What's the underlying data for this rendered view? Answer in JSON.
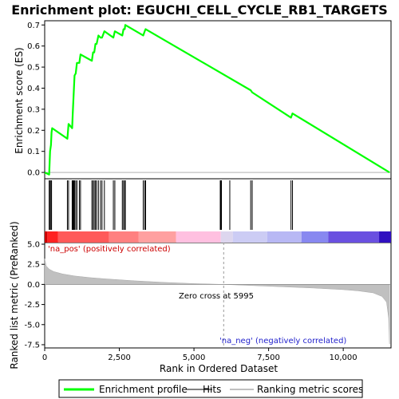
{
  "chart_data": {
    "type": "line",
    "title": "Enrichment plot: EGUCHI_CELL_CYCLE_RB1_TARGETS",
    "xlabel": "Rank in Ordered Dataset",
    "ylabel_top": "Enrichment score (ES)",
    "ylabel_bottom": "Ranked list metric (PreRanked)",
    "xlim": [
      0,
      11600
    ],
    "x_ticks": [
      0,
      2500,
      5000,
      7500,
      10000
    ],
    "x_tick_labels": [
      "0",
      "2,500",
      "5,000",
      "7,500",
      "10,000"
    ],
    "es_ylim": [
      -0.03,
      0.72
    ],
    "es_ticks": [
      0.0,
      0.1,
      0.2,
      0.3,
      0.4,
      0.5,
      0.6,
      0.7
    ],
    "es_tick_labels": [
      "0.0",
      "0.1",
      "0.2",
      "0.3",
      "0.4",
      "0.5",
      "0.6",
      "0.7"
    ],
    "metric_ylim": [
      -7.9,
      5.2
    ],
    "metric_ticks": [
      5.0,
      2.5,
      0.0,
      -2.5,
      -5.0,
      -7.5
    ],
    "metric_tick_labels": [
      "5.0",
      "2.5",
      "0.0",
      "-2.5",
      "-5.0",
      "-7.5"
    ],
    "enrichment_profile": {
      "color": "#00ff00",
      "x": [
        0,
        150,
        180,
        210,
        230,
        250,
        760,
        800,
        920,
        940,
        960,
        980,
        1000,
        1040,
        1080,
        1160,
        1200,
        1580,
        1620,
        1660,
        1700,
        1740,
        1800,
        1870,
        1920,
        2000,
        2300,
        2350,
        2600,
        2640,
        2680,
        2700,
        3300,
        3350,
        3380,
        6900,
        6950,
        8250,
        8300,
        11550
      ],
      "y": [
        0.0,
        -0.01,
        0.1,
        0.13,
        0.19,
        0.21,
        0.16,
        0.23,
        0.21,
        0.28,
        0.34,
        0.4,
        0.46,
        0.47,
        0.52,
        0.52,
        0.56,
        0.53,
        0.57,
        0.57,
        0.61,
        0.61,
        0.65,
        0.64,
        0.64,
        0.67,
        0.64,
        0.67,
        0.65,
        0.68,
        0.68,
        0.7,
        0.65,
        0.67,
        0.68,
        0.39,
        0.38,
        0.26,
        0.28,
        0.0
      ]
    },
    "hits": [
      150,
      180,
      210,
      230,
      760,
      800,
      920,
      940,
      960,
      980,
      1000,
      1040,
      1080,
      1160,
      1200,
      1580,
      1620,
      1660,
      1700,
      1740,
      1800,
      1870,
      1920,
      2000,
      2300,
      2350,
      2600,
      2640,
      2680,
      2700,
      3300,
      3350,
      3380,
      5880,
      5900,
      5920,
      6200,
      6900,
      6950,
      8250,
      8300
    ],
    "ranked_metric": {
      "x": [
        0,
        50,
        150,
        300,
        600,
        1000,
        1500,
        2000,
        3000,
        4000,
        5000,
        5995,
        7000,
        8000,
        9000,
        10000,
        10500,
        11000,
        11300,
        11450,
        11520,
        11550
      ],
      "y": [
        3.2,
        2.3,
        1.9,
        1.6,
        1.3,
        1.05,
        0.85,
        0.7,
        0.45,
        0.25,
        0.1,
        0.0,
        -0.15,
        -0.3,
        -0.45,
        -0.65,
        -0.8,
        -1.05,
        -1.5,
        -2.2,
        -4.2,
        -7.4
      ]
    },
    "zero_cross": 5995,
    "annotations": {
      "pos": "'na_pos' (positively correlated)",
      "neg": "'na_neg' (negatively correlated)",
      "zero_cross": "Zero cross at 5995"
    },
    "legend": {
      "placement": "bottom",
      "items": [
        {
          "label": "Enrichment profile",
          "color": "#00ff00"
        },
        {
          "label": "Hits",
          "color": "#000000"
        },
        {
          "label": "Ranking metric scores",
          "color": "#c0c0c0"
        }
      ]
    },
    "heat_bar": [
      {
        "from": 0,
        "to": 90,
        "color": "#cc0000"
      },
      {
        "from": 90,
        "to": 450,
        "color": "#ff2222"
      },
      {
        "from": 450,
        "to": 2150,
        "color": "#ff5a5a"
      },
      {
        "from": 2150,
        "to": 3150,
        "color": "#ff8080"
      },
      {
        "from": 3150,
        "to": 4400,
        "color": "#ffa0a0"
      },
      {
        "from": 4400,
        "to": 5900,
        "color": "#ffc0e0"
      },
      {
        "from": 5900,
        "to": 6300,
        "color": "#ddd6ee"
      },
      {
        "from": 6300,
        "to": 7450,
        "color": "#ccccf4"
      },
      {
        "from": 7450,
        "to": 8600,
        "color": "#b8b8f4"
      },
      {
        "from": 8600,
        "to": 9500,
        "color": "#8888f0"
      },
      {
        "from": 9500,
        "to": 11200,
        "color": "#6a50e0"
      },
      {
        "from": 11200,
        "to": 11600,
        "color": "#3010c0"
      }
    ]
  }
}
